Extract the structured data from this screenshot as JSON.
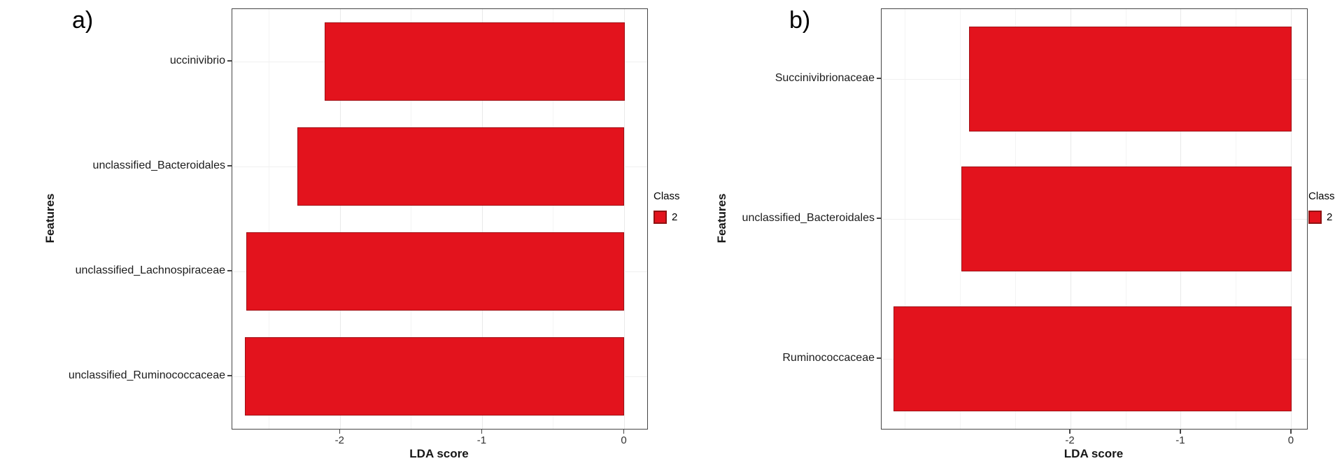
{
  "figure": {
    "background": "#ffffff",
    "accent_red": "#e3131d"
  },
  "chart_data": [
    {
      "type": "bar",
      "orientation": "horizontal",
      "panel_letter": "a)",
      "title": "",
      "xlabel": "LDA score",
      "ylabel": "Features",
      "categories": [
        "uccinivibrio",
        "unclassified_Bacteroidales",
        "unclassified_Lachnospiraceae",
        "unclassified_Ruminococcaceae"
      ],
      "values": [
        -2.11,
        -2.3,
        -2.66,
        -2.67
      ],
      "xlim": [
        -2.76,
        0.16
      ],
      "xticks": [
        -2,
        -1,
        0
      ],
      "xtick_labels": [
        "-2",
        "-1",
        "0"
      ],
      "grid": true,
      "bar_color": "#e3131d",
      "bar_border": "#a01116",
      "legend": {
        "position": "right",
        "title": "Class",
        "entries": [
          {
            "label": "2",
            "color": "#e3131d",
            "border": "#8f1212"
          }
        ]
      }
    },
    {
      "type": "bar",
      "orientation": "horizontal",
      "panel_letter": "b)",
      "title": "",
      "xlabel": "LDA score",
      "ylabel": "Features",
      "categories": [
        "Succinivibrionaceae",
        "unclassified_Bacteroidales",
        "Ruminococcaceae"
      ],
      "values": [
        -2.92,
        -2.99,
        -3.6
      ],
      "xlim": [
        -3.71,
        0.14
      ],
      "xticks": [
        -2,
        -1,
        0
      ],
      "xtick_labels": [
        "-2",
        "-1",
        "0"
      ],
      "grid": true,
      "bar_color": "#e3131d",
      "bar_border": "#a01116",
      "legend": {
        "position": "right",
        "title": "Class",
        "entries": [
          {
            "label": "2",
            "color": "#e3131d",
            "border": "#8f1212"
          }
        ]
      }
    }
  ]
}
